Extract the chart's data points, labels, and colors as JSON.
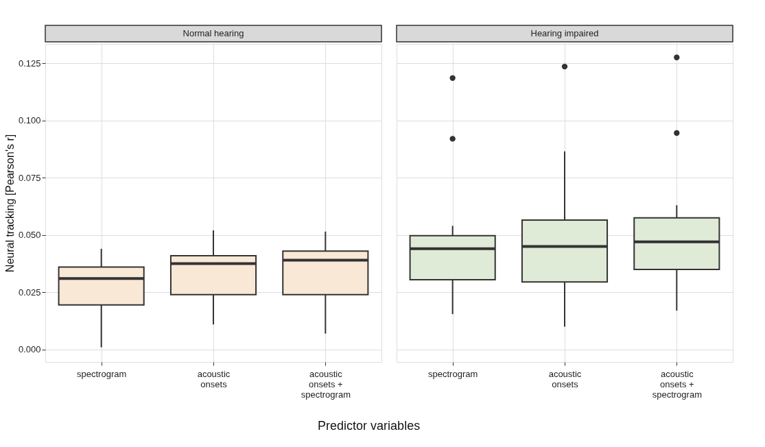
{
  "chart_data": [
    {
      "type": "box",
      "title": "Normal hearing",
      "xlabel": "Predictor variables",
      "ylabel": "Neural tracking [Pearson's r]",
      "categories": [
        "spectrogram",
        "acoustic onsets",
        "acoustic onsets + spectrogram"
      ],
      "ylim": [
        -0.0054,
        0.1334
      ],
      "yticks": [
        {
          "value": 0,
          "label": "0.000"
        },
        0.025,
        {
          "value": 0.05,
          "label": "0.050"
        },
        0.075,
        {
          "value": 0.1,
          "label": "0.100"
        },
        0.125
      ],
      "grid": true,
      "series": [
        {
          "color": "#f9e8d6",
          "boxes": [
            {
              "low": 0.001,
              "q1": 0.0195,
              "median": 0.031,
              "q3": 0.036,
              "high": 0.044
            },
            {
              "low": 0.011,
              "q1": 0.024,
              "median": 0.0375,
              "q3": 0.041,
              "high": 0.052
            },
            {
              "low": 0.007,
              "q1": 0.024,
              "median": 0.039,
              "q3": 0.043,
              "high": 0.0515
            }
          ]
        }
      ]
    },
    {
      "type": "box",
      "title": "Hearing impaired",
      "tick_labels": "x",
      "categories": [
        "spectrogram",
        "acoustic onsets",
        "acoustic onsets + spectrogram"
      ],
      "ylim": [
        -0.0054,
        0.1334
      ],
      "yticks": [
        0,
        0.025,
        0.05,
        0.075,
        0.1,
        0.125
      ],
      "grid": true,
      "series": [
        {
          "color": "#dfead7",
          "boxes": [
            {
              "low": 0.0155,
              "q1": 0.0305,
              "median": 0.044,
              "q3": 0.0497,
              "high": 0.054,
              "outliers": [
                0.092,
                0.1185
              ]
            },
            {
              "low": 0.01,
              "q1": 0.0295,
              "median": 0.045,
              "q3": 0.0565,
              "high": 0.0865,
              "outliers": [
                0.1235
              ]
            },
            {
              "low": 0.017,
              "q1": 0.035,
              "median": 0.047,
              "q3": 0.0575,
              "high": 0.063,
              "outliers": [
                0.0945,
                0.1275
              ]
            }
          ]
        }
      ]
    }
  ]
}
